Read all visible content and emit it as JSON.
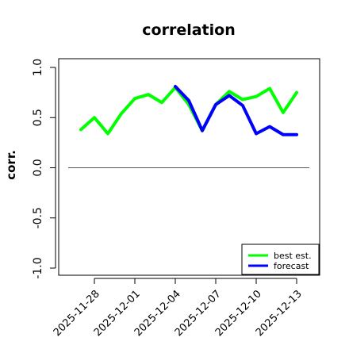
{
  "chart_data": {
    "type": "line",
    "title": "correlation",
    "xlabel": "",
    "ylabel": "corr.",
    "ylim": [
      -1.0,
      1.0
    ],
    "y_ticks": [
      "-1.0",
      "-0.5",
      "0.0",
      "0.5",
      "1.0"
    ],
    "x_ticks": [
      "2025-11-28",
      "2025-12-01",
      "2025-12-04",
      "2025-12-07",
      "2025-12-10",
      "2025-12-13"
    ],
    "highlight_tick": "2025-12-04",
    "highlight_color": "#228B22",
    "x": [
      "2025-11-27",
      "2025-11-28",
      "2025-11-29",
      "2025-11-30",
      "2025-12-01",
      "2025-12-02",
      "2025-12-03",
      "2025-12-04",
      "2025-12-05",
      "2025-12-06",
      "2025-12-07",
      "2025-12-08",
      "2025-12-09",
      "2025-12-10",
      "2025-12-11",
      "2025-12-12",
      "2025-12-13"
    ],
    "series": [
      {
        "name": "best est.",
        "color": "#00ff00",
        "values": [
          0.38,
          0.5,
          0.34,
          0.54,
          0.69,
          0.73,
          0.65,
          0.8,
          0.63,
          0.37,
          0.63,
          0.76,
          0.68,
          0.71,
          0.79,
          0.55,
          0.75
        ]
      },
      {
        "name": "forecast",
        "color": "#0000ff",
        "values": [
          null,
          null,
          null,
          null,
          null,
          null,
          null,
          0.81,
          0.67,
          0.37,
          0.63,
          0.72,
          0.62,
          0.34,
          0.41,
          0.33,
          0.33
        ]
      }
    ],
    "reference_line": 0.0,
    "grid": false,
    "legend_position": "bottom-right"
  }
}
